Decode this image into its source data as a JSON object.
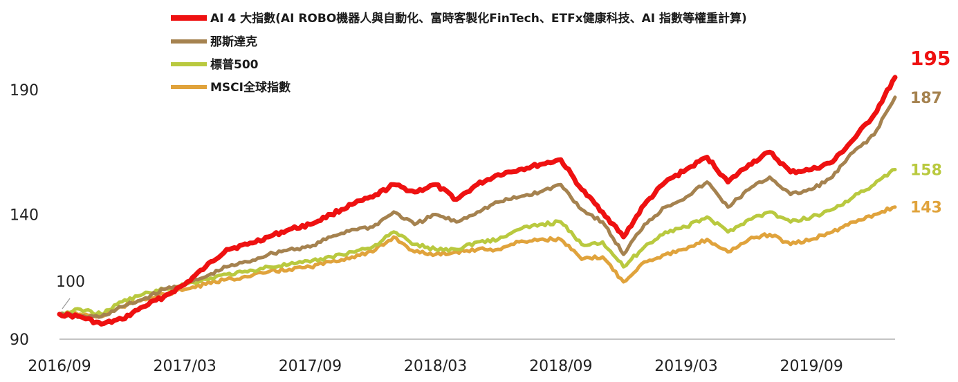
{
  "chart_data": {
    "type": "line",
    "title": "",
    "xlabel": "",
    "ylabel": "",
    "ylim": [
      90,
      200
    ],
    "y_ticks": [
      "90",
      "140",
      "190"
    ],
    "x_ticks": [
      "2016/09",
      "2017/03",
      "2017/09",
      "2018/03",
      "2018/09",
      "2019/03",
      "2019/09"
    ],
    "x_range": [
      "2016/09",
      "2020/01"
    ],
    "grid": false,
    "legend_position": "top",
    "start_label": "100",
    "series": [
      {
        "name": "AI 4 大指數(AI ROBO機器人與自動化、富時客製化FinTech、ETFx健康科技、AI 指數等權重計算)",
        "color": "#ee1111",
        "end_label": "195",
        "end_label_color": "#ee1111",
        "points": [
          [
            "2016/09",
            100
          ],
          [
            "2016/10",
            99
          ],
          [
            "2016/11",
            96
          ],
          [
            "2016/12",
            98
          ],
          [
            "2017/01",
            103
          ],
          [
            "2017/02",
            107
          ],
          [
            "2017/03",
            112
          ],
          [
            "2017/04",
            119
          ],
          [
            "2017/05",
            126
          ],
          [
            "2017/06",
            128
          ],
          [
            "2017/07",
            131
          ],
          [
            "2017/08",
            134
          ],
          [
            "2017/09",
            136
          ],
          [
            "2017/10",
            140
          ],
          [
            "2017/11",
            144
          ],
          [
            "2017/12",
            147
          ],
          [
            "2018/01",
            152
          ],
          [
            "2018/02",
            149
          ],
          [
            "2018/03",
            152
          ],
          [
            "2018/04",
            146
          ],
          [
            "2018/05",
            152
          ],
          [
            "2018/06",
            156
          ],
          [
            "2018/07",
            158
          ],
          [
            "2018/08",
            160
          ],
          [
            "2018/09",
            162
          ],
          [
            "2018/10",
            150
          ],
          [
            "2018/11",
            141
          ],
          [
            "2018/12",
            131
          ],
          [
            "2019/01",
            144
          ],
          [
            "2019/02",
            153
          ],
          [
            "2019/03",
            158
          ],
          [
            "2019/04",
            163
          ],
          [
            "2019/05",
            153
          ],
          [
            "2019/06",
            160
          ],
          [
            "2019/07",
            165
          ],
          [
            "2019/08",
            157
          ],
          [
            "2019/09",
            158
          ],
          [
            "2019/10",
            161
          ],
          [
            "2019/11",
            170
          ],
          [
            "2019/12",
            180
          ],
          [
            "2020/01",
            195
          ]
        ]
      },
      {
        "name": "那斯達克",
        "color": "#a5824f",
        "end_label": "187",
        "end_label_color": "#a5824f",
        "points": [
          [
            "2016/09",
            100
          ],
          [
            "2016/10",
            99
          ],
          [
            "2016/11",
            99
          ],
          [
            "2016/12",
            103
          ],
          [
            "2017/01",
            106
          ],
          [
            "2017/02",
            110
          ],
          [
            "2017/03",
            112
          ],
          [
            "2017/04",
            115
          ],
          [
            "2017/05",
            119
          ],
          [
            "2017/06",
            121
          ],
          [
            "2017/07",
            124
          ],
          [
            "2017/08",
            126
          ],
          [
            "2017/09",
            127
          ],
          [
            "2017/10",
            131
          ],
          [
            "2017/11",
            134
          ],
          [
            "2017/12",
            135
          ],
          [
            "2018/01",
            141
          ],
          [
            "2018/02",
            136
          ],
          [
            "2018/03",
            140
          ],
          [
            "2018/04",
            137
          ],
          [
            "2018/05",
            141
          ],
          [
            "2018/06",
            145
          ],
          [
            "2018/07",
            147
          ],
          [
            "2018/08",
            149
          ],
          [
            "2018/09",
            152
          ],
          [
            "2018/10",
            142
          ],
          [
            "2018/11",
            137
          ],
          [
            "2018/12",
            124
          ],
          [
            "2019/01",
            136
          ],
          [
            "2019/02",
            143
          ],
          [
            "2019/03",
            147
          ],
          [
            "2019/04",
            153
          ],
          [
            "2019/05",
            143
          ],
          [
            "2019/06",
            150
          ],
          [
            "2019/07",
            155
          ],
          [
            "2019/08",
            148
          ],
          [
            "2019/09",
            150
          ],
          [
            "2019/10",
            155
          ],
          [
            "2019/11",
            165
          ],
          [
            "2019/12",
            172
          ],
          [
            "2020/01",
            187
          ]
        ]
      },
      {
        "name": "標普500",
        "color": "#b9c93f",
        "end_label": "158",
        "end_label_color": "#b9c93f",
        "points": [
          [
            "2016/09",
            100
          ],
          [
            "2016/10",
            102
          ],
          [
            "2016/11",
            100
          ],
          [
            "2016/12",
            105
          ],
          [
            "2017/01",
            108
          ],
          [
            "2017/02",
            110
          ],
          [
            "2017/03",
            112
          ],
          [
            "2017/04",
            114
          ],
          [
            "2017/05",
            116
          ],
          [
            "2017/06",
            117
          ],
          [
            "2017/07",
            119
          ],
          [
            "2017/08",
            120
          ],
          [
            "2017/09",
            121
          ],
          [
            "2017/10",
            123
          ],
          [
            "2017/11",
            125
          ],
          [
            "2017/12",
            127
          ],
          [
            "2018/01",
            133
          ],
          [
            "2018/02",
            128
          ],
          [
            "2018/03",
            126
          ],
          [
            "2018/04",
            126
          ],
          [
            "2018/05",
            129
          ],
          [
            "2018/06",
            130
          ],
          [
            "2018/07",
            134
          ],
          [
            "2018/08",
            136
          ],
          [
            "2018/09",
            137
          ],
          [
            "2018/10",
            128
          ],
          [
            "2018/11",
            129
          ],
          [
            "2018/12",
            119
          ],
          [
            "2019/01",
            127
          ],
          [
            "2019/02",
            133
          ],
          [
            "2019/03",
            135
          ],
          [
            "2019/04",
            139
          ],
          [
            "2019/05",
            133
          ],
          [
            "2019/06",
            138
          ],
          [
            "2019/07",
            141
          ],
          [
            "2019/08",
            137
          ],
          [
            "2019/09",
            139
          ],
          [
            "2019/10",
            142
          ],
          [
            "2019/11",
            147
          ],
          [
            "2019/12",
            152
          ],
          [
            "2020/01",
            158
          ]
        ]
      },
      {
        "name": "MSCI全球指數",
        "color": "#e0a33c",
        "end_label": "143",
        "end_label_color": "#e0a33c",
        "points": [
          [
            "2016/09",
            100
          ],
          [
            "2016/10",
            100
          ],
          [
            "2016/11",
            99
          ],
          [
            "2016/12",
            103
          ],
          [
            "2017/01",
            106
          ],
          [
            "2017/02",
            108
          ],
          [
            "2017/03",
            110
          ],
          [
            "2017/04",
            112
          ],
          [
            "2017/05",
            114
          ],
          [
            "2017/06",
            115
          ],
          [
            "2017/07",
            117
          ],
          [
            "2017/08",
            118
          ],
          [
            "2017/09",
            119
          ],
          [
            "2017/10",
            121
          ],
          [
            "2017/11",
            123
          ],
          [
            "2017/12",
            125
          ],
          [
            "2018/01",
            131
          ],
          [
            "2018/02",
            125
          ],
          [
            "2018/03",
            124
          ],
          [
            "2018/04",
            125
          ],
          [
            "2018/05",
            126
          ],
          [
            "2018/06",
            126
          ],
          [
            "2018/07",
            129
          ],
          [
            "2018/08",
            130
          ],
          [
            "2018/09",
            130
          ],
          [
            "2018/10",
            122
          ],
          [
            "2018/11",
            123
          ],
          [
            "2018/12",
            113
          ],
          [
            "2019/01",
            121
          ],
          [
            "2019/02",
            124
          ],
          [
            "2019/03",
            126
          ],
          [
            "2019/04",
            130
          ],
          [
            "2019/05",
            125
          ],
          [
            "2019/06",
            130
          ],
          [
            "2019/07",
            132
          ],
          [
            "2019/08",
            128
          ],
          [
            "2019/09",
            130
          ],
          [
            "2019/10",
            133
          ],
          [
            "2019/11",
            137
          ],
          [
            "2019/12",
            140
          ],
          [
            "2020/01",
            143
          ]
        ]
      }
    ]
  }
}
